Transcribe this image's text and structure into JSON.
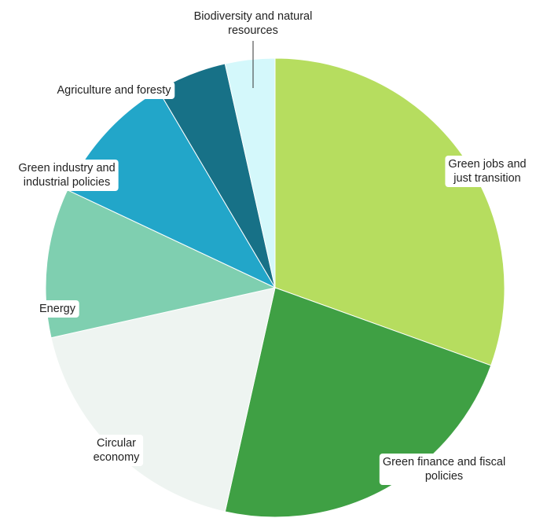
{
  "chart_data": {
    "type": "pie",
    "title": "",
    "slices": [
      {
        "name": "Green jobs and just transition",
        "lines": [
          "Green jobs and",
          "just transition"
        ],
        "value": 30.5,
        "color": "#b6dd5f"
      },
      {
        "name": "Green finance and fiscal policies",
        "lines": [
          "Green finance and fiscal",
          "policies"
        ],
        "value": 23.0,
        "color": "#3fa044"
      },
      {
        "name": "Circular economy",
        "lines": [
          "Circular",
          "economy"
        ],
        "value": 18.0,
        "color": "#eef4f1"
      },
      {
        "name": "Energy",
        "lines": [
          "Energy"
        ],
        "value": 10.5,
        "color": "#7fcfb0"
      },
      {
        "name": "Green industry and industrial policies",
        "lines": [
          "Green industry and",
          "industrial policies"
        ],
        "value": 9.5,
        "color": "#22a6c9"
      },
      {
        "name": "Agriculture and foresty",
        "lines": [
          "Agriculture and foresty"
        ],
        "value": 5.0,
        "color": "#177187"
      },
      {
        "name": "Biodiversity and natural resources",
        "lines": [
          "Biodiversity and natural",
          "resources"
        ],
        "value": 3.5,
        "color": "#d4f8fb"
      }
    ],
    "start_angle": "12 o'clock",
    "direction": "clockwise",
    "legend": "none",
    "labels": "direct"
  }
}
